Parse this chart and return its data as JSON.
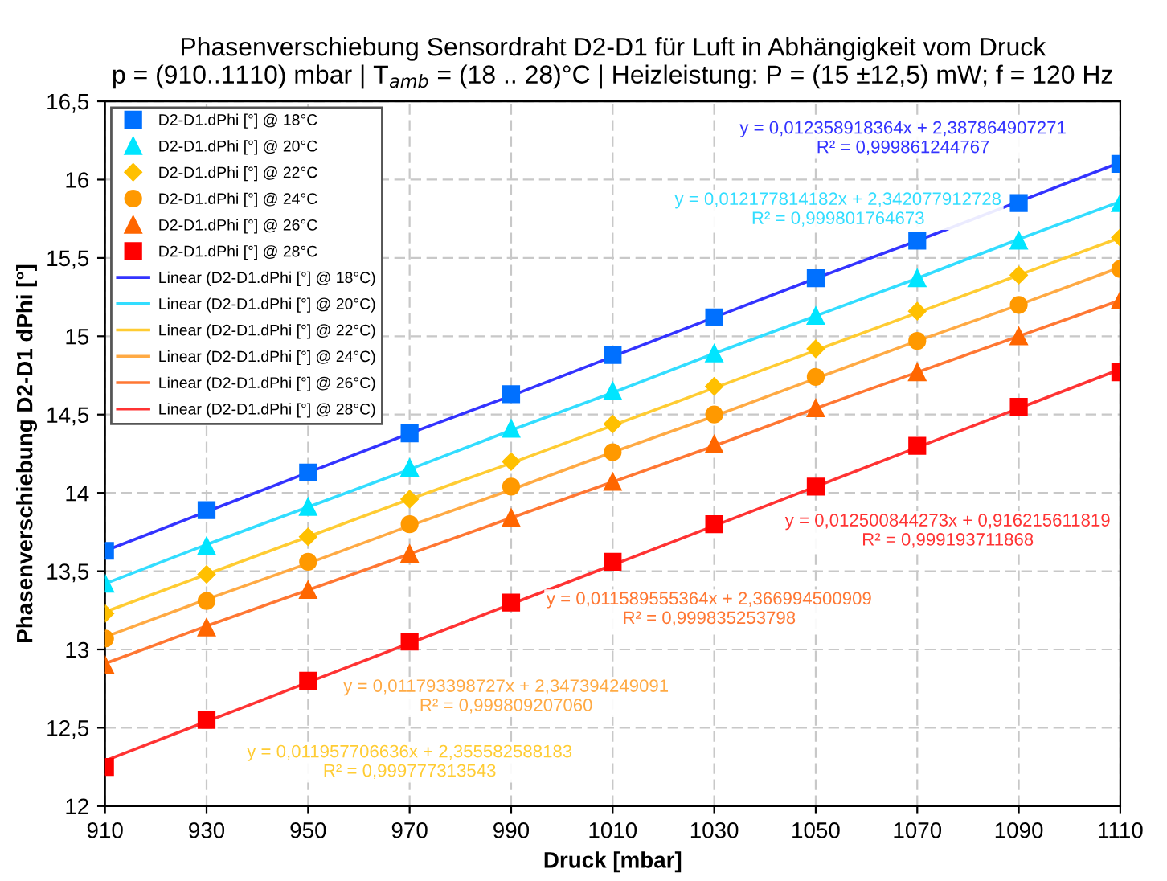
{
  "chart_data": {
    "type": "scatter",
    "title": "Phasenverschiebung Sensordraht D2-D1 für Luft in Abhängigkeit vom Druck\np = (910..1110) mbar | T$_{amb}$ = (18 .. 28)°C | Heizleistung: P = (15 ±12,5) mW; f = 120 Hz",
    "xlabel": "Druck [mbar]",
    "ylabel": "Phasenverschiebung D2-D1 dPhi [°]",
    "x": [
      910,
      930,
      950,
      970,
      990,
      1010,
      1030,
      1050,
      1070,
      1090,
      1110
    ],
    "series": [
      {
        "name": "D2-D1.dPhi [°] @ 18°C",
        "color": "#0070ff",
        "marker": "square",
        "values": [
          13.63,
          13.89,
          14.13,
          14.38,
          14.63,
          14.88,
          15.12,
          15.37,
          15.61,
          15.85,
          16.1
        ]
      },
      {
        "name": "D2-D1.dPhi [°] @ 20°C",
        "color": "#00e5ff",
        "marker": "triangle",
        "values": [
          13.42,
          13.66,
          13.91,
          14.16,
          14.41,
          14.65,
          14.89,
          15.13,
          15.37,
          15.61,
          15.85
        ]
      },
      {
        "name": "D2-D1.dPhi [°] @ 22°C",
        "color": "#ffc000",
        "marker": "diamond",
        "values": [
          13.23,
          13.48,
          13.72,
          13.96,
          14.2,
          14.44,
          14.68,
          14.92,
          15.16,
          15.39,
          15.63
        ]
      },
      {
        "name": "D2-D1.dPhi [°] @ 24°C",
        "color": "#ff9900",
        "marker": "circle",
        "values": [
          13.07,
          13.31,
          13.56,
          13.8,
          14.04,
          14.26,
          14.5,
          14.74,
          14.97,
          15.2,
          15.43
        ]
      },
      {
        "name": "D2-D1.dPhi [°] @ 26°C",
        "color": "#ff6600",
        "marker": "triangle",
        "values": [
          12.9,
          13.14,
          13.38,
          13.61,
          13.84,
          14.07,
          14.31,
          14.54,
          14.77,
          15.0,
          15.23
        ]
      },
      {
        "name": "D2-D1.dPhi [°] @ 28°C",
        "color": "#ff0000",
        "marker": "square",
        "values": [
          12.25,
          12.55,
          12.8,
          13.05,
          13.3,
          13.56,
          13.8,
          14.04,
          14.3,
          14.55,
          14.77
        ]
      },
      {
        "name": "Linear (D2-D1.dPhi [°] @ 18°C)",
        "type": "line",
        "color": "#3333ff",
        "values": [
          13.63,
          13.88,
          14.13,
          14.38,
          14.62,
          14.87,
          15.12,
          15.37,
          15.61,
          15.86,
          16.11
        ]
      },
      {
        "name": "Linear (D2-D1.dPhi [°] @ 20°C)",
        "type": "line",
        "color": "#33ddff",
        "values": [
          13.42,
          13.67,
          13.91,
          14.15,
          14.4,
          14.64,
          14.89,
          15.13,
          15.37,
          15.62,
          15.86
        ]
      },
      {
        "name": "Linear (D2-D1.dPhi [°] @ 22°C)",
        "type": "line",
        "color": "#ffcc33",
        "values": [
          13.24,
          13.48,
          13.72,
          13.96,
          14.19,
          14.43,
          14.67,
          14.91,
          15.15,
          15.39,
          15.63
        ]
      },
      {
        "name": "Linear (D2-D1.dPhi [°] @ 24°C)",
        "type": "line",
        "color": "#ffaa44",
        "values": [
          13.08,
          13.32,
          13.55,
          13.79,
          14.02,
          14.26,
          14.49,
          14.73,
          14.97,
          15.2,
          15.44
        ]
      },
      {
        "name": "Linear (D2-D1.dPhi [°] @ 26°C)",
        "type": "line",
        "color": "#ff7733",
        "values": [
          12.91,
          13.15,
          13.38,
          13.61,
          13.84,
          14.07,
          14.3,
          14.54,
          14.77,
          15.0,
          15.23
        ]
      },
      {
        "name": "Linear (D2-D1.dPhi [°] @ 28°C)",
        "type": "line",
        "color": "#ff3333",
        "values": [
          12.29,
          12.54,
          12.79,
          13.04,
          13.29,
          13.54,
          13.79,
          14.04,
          14.29,
          14.54,
          14.79
        ]
      }
    ],
    "annotations": [
      "y = 0,012358918364x + 2,387864907271\nR² = 0,999861244767",
      "y = 0,012177814182x + 2,342077912728\nR² = 0,999801764673",
      "y = 0,011957706636x + 2,355582588183\nR² = 0,999777313543",
      "y = 0,011793398727x + 2,347394249091\nR² = 0,999809207060",
      "y = 0,011589555364x + 2,366994500909\nR² = 0,999835253798",
      "y = 0,012500844273x + 0,916215611819\nR² = 0,999193711868"
    ],
    "xlim": [
      910,
      1110
    ],
    "xticks": [
      910,
      930,
      950,
      970,
      990,
      1010,
      1030,
      1050,
      1070,
      1090,
      1110
    ],
    "ylim": [
      12,
      16.5
    ],
    "yticks": [
      12,
      {
        "value": 12.5,
        "label": "12,5"
      },
      13,
      {
        "value": 13.5,
        "label": "13,5"
      },
      14,
      {
        "value": 14.5,
        "label": "14,5"
      },
      15,
      {
        "value": 15.5,
        "label": "15,5"
      },
      16,
      {
        "value": 16.5,
        "label": "16,5"
      }
    ],
    "grid": true,
    "legend": "top left",
    "line_style": "solid"
  }
}
